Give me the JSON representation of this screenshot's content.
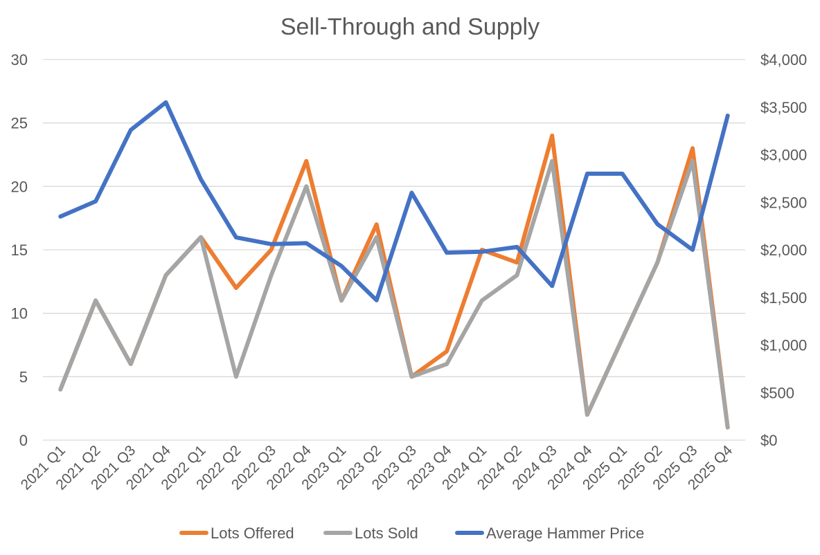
{
  "chart_data": {
    "type": "line",
    "title": "Sell-Through and Supply",
    "categories": [
      "2021 Q1",
      "2021 Q2",
      "2021 Q3",
      "2021 Q4",
      "2022 Q1",
      "2022 Q2",
      "2022 Q3",
      "2022 Q4",
      "2023 Q1",
      "2023 Q2",
      "2023 Q3",
      "2023 Q4",
      "2024 Q1",
      "2024 Q2",
      "2024 Q3",
      "2024 Q4",
      "2025 Q1",
      "2025 Q2",
      "2025 Q3",
      "2025 Q4"
    ],
    "y_left": {
      "min": 0,
      "max": 30,
      "ticks": [
        0,
        5,
        10,
        15,
        20,
        25,
        30
      ],
      "tick_labels": [
        "0",
        "5",
        "10",
        "15",
        "20",
        "25",
        "30"
      ]
    },
    "y_right": {
      "min": 0,
      "max": 4000,
      "ticks": [
        0,
        500,
        1000,
        1500,
        2000,
        2500,
        3000,
        3500,
        4000
      ],
      "tick_labels": [
        "$0",
        "$500",
        "$1,000",
        "$1,500",
        "$2,000",
        "$2,500",
        "$3,000",
        "$3,500",
        "$4,000"
      ]
    },
    "grid": true,
    "legend_position": "bottom",
    "series": [
      {
        "name": "Lots Offered",
        "axis": "left",
        "color": "#ED7D31",
        "values": [
          4,
          11,
          6,
          13,
          16,
          12,
          15,
          22,
          11,
          17,
          5,
          7,
          15,
          14,
          24,
          2,
          8,
          14,
          23,
          1
        ]
      },
      {
        "name": "Lots Sold",
        "axis": "left",
        "color": "#A5A5A5",
        "values": [
          4,
          11,
          6,
          13,
          16,
          5,
          13,
          20,
          11,
          16,
          5,
          6,
          11,
          13,
          22,
          2,
          8,
          14,
          22,
          1
        ]
      },
      {
        "name": "Average Hammer Price",
        "axis": "right",
        "color": "#4472C4",
        "values": [
          2350,
          2510,
          3260,
          3550,
          2740,
          2130,
          2060,
          2070,
          1830,
          1470,
          2600,
          1970,
          1980,
          2030,
          1620,
          2800,
          2800,
          2270,
          2000,
          3410
        ]
      }
    ]
  }
}
